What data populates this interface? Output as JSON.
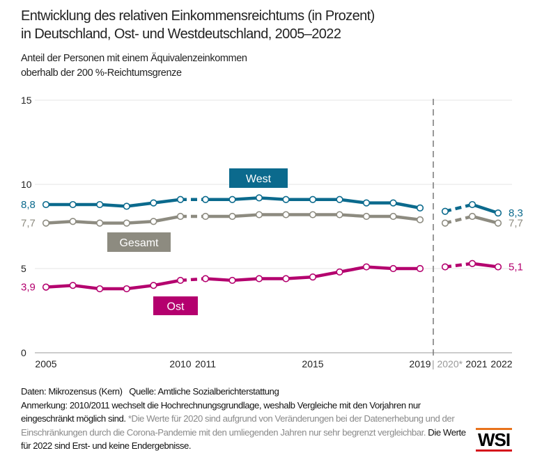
{
  "title_line1": "Entwicklung des relativen Einkommensreichtums (in Prozent)",
  "title_line2": "in Deutschland, Ost- und Westdeutschland, 2005–2022",
  "subtitle_line1": "Anteil der Personen mit einem Äquivalenzeinkommen",
  "subtitle_line2": "oberhalb der 200 %-Reichtumsgrenze",
  "notes": {
    "source": "Daten: Mikrozensus (Kern)   Quelle: Amtliche Sozialberichterstattung",
    "remark": "Anmerkung: 2010/2011 wechselt die Hochrechnungsgrundlage, weshalb Vergleiche mit den Vorjahren nur eingeschränkt möglich sind.",
    "remark_2020": "*Die Werte für 2020 sind aufgrund von Veränderungen bei der Datenerhebung und der Einschränkungen durch die Corona-Pandemie mit den umliegenden Jahren nur sehr begrenzt vergleichbar.",
    "remark_2022": "Die Werte für 2022 sind Erst- und keine Endergebnisse."
  },
  "logo": "WSI",
  "chart_data": {
    "type": "line",
    "x": [
      2005,
      2006,
      2007,
      2008,
      2009,
      2010,
      2011,
      2012,
      2013,
      2014,
      2015,
      2016,
      2017,
      2018,
      2019,
      2020,
      2021,
      2022
    ],
    "x_tick_labels": [
      "2005",
      "2010",
      "2011",
      "2015",
      "2019",
      "| 2020*",
      "2021",
      "2022"
    ],
    "y_ticks": [
      "0",
      "5",
      "10",
      "15"
    ],
    "ylim": [
      0,
      15
    ],
    "grid": true,
    "series": [
      {
        "name": "West",
        "color": "#0b6a8d",
        "values": [
          8.8,
          8.8,
          8.8,
          8.7,
          8.9,
          9.1,
          9.1,
          9.1,
          9.2,
          9.1,
          9.1,
          9.1,
          8.9,
          8.9,
          8.6,
          8.4,
          8.8,
          8.3
        ],
        "start_label": "8,8",
        "end_label": "8,3"
      },
      {
        "name": "Gesamt",
        "color": "#8d8b80",
        "values": [
          7.7,
          7.8,
          7.7,
          7.7,
          7.8,
          8.1,
          8.1,
          8.1,
          8.2,
          8.2,
          8.2,
          8.2,
          8.1,
          8.1,
          7.9,
          7.7,
          8.1,
          7.7
        ],
        "start_label": "7,7",
        "end_label": "7,7"
      },
      {
        "name": "Ost",
        "color": "#b4006e",
        "values": [
          3.9,
          4.0,
          3.8,
          3.8,
          4.0,
          4.3,
          4.4,
          4.3,
          4.4,
          4.4,
          4.5,
          4.8,
          5.1,
          5.0,
          5.0,
          5.1,
          5.3,
          5.1
        ],
        "start_label": "3,9",
        "end_label": "5,1"
      }
    ],
    "dashed_segments": [
      "2010–2011",
      "2019|2020 break",
      "2020–2021"
    ]
  }
}
